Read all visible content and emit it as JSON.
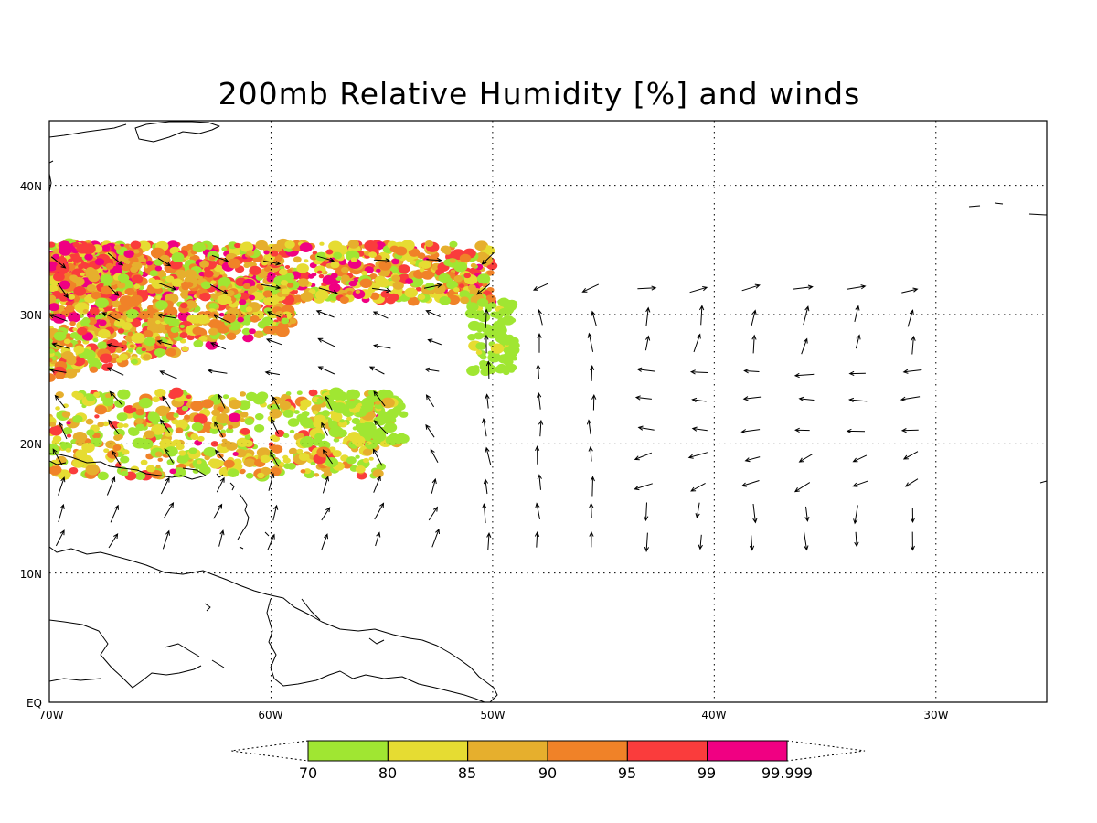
{
  "title": "200mb Relative Humidity [%] and winds",
  "lon_labels": [
    "70W",
    "60W",
    "50W",
    "40W",
    "30W"
  ],
  "lat_labels": [
    "EQ",
    "10N",
    "20N",
    "30N",
    "40N"
  ],
  "extent": {
    "lon": [
      -70,
      -25
    ],
    "lat": [
      0,
      45
    ]
  },
  "grid_lons": [
    -60,
    -50,
    -40,
    -30
  ],
  "grid_lats": [
    10,
    20,
    30,
    40
  ],
  "colorbar": {
    "labels": [
      "70",
      "80",
      "85",
      "90",
      "95",
      "99",
      "99.999"
    ],
    "colors": [
      "#a0e632",
      "#e6dc32",
      "#e6af2d",
      "#f08228",
      "#fa3c3c",
      "#f00082"
    ]
  },
  "chart_data": {
    "type": "heatmap",
    "title": "200mb Relative Humidity [%] and winds",
    "variable": "Relative Humidity [%]",
    "level": "200mb",
    "xlim": [
      "70W",
      "25W"
    ],
    "ylim": [
      "EQ",
      "45N"
    ],
    "humid_bands": [
      {
        "name": "northern band",
        "lon": [
          -70,
          -50
        ],
        "lat": [
          31,
          35.5
        ],
        "rh_range": "80-99.999"
      },
      {
        "name": "central streak",
        "lon": [
          -70,
          -59
        ],
        "lat": [
          25,
          29
        ],
        "rh_range": "70-99"
      },
      {
        "name": "southern patches",
        "lon": [
          -70,
          -55
        ],
        "lat": [
          17.5,
          24
        ],
        "rh_range": "70-95"
      },
      {
        "name": "isolated patch",
        "lon": [
          -51,
          -49
        ],
        "lat": [
          25,
          31
        ],
        "rh_range": "70-80"
      }
    ],
    "winds": "vector arrows on a ~2.5 degree grid; cyclonic-looking circulation north of 20N east of 50W, northerly flow 12-17N east of 42W"
  }
}
